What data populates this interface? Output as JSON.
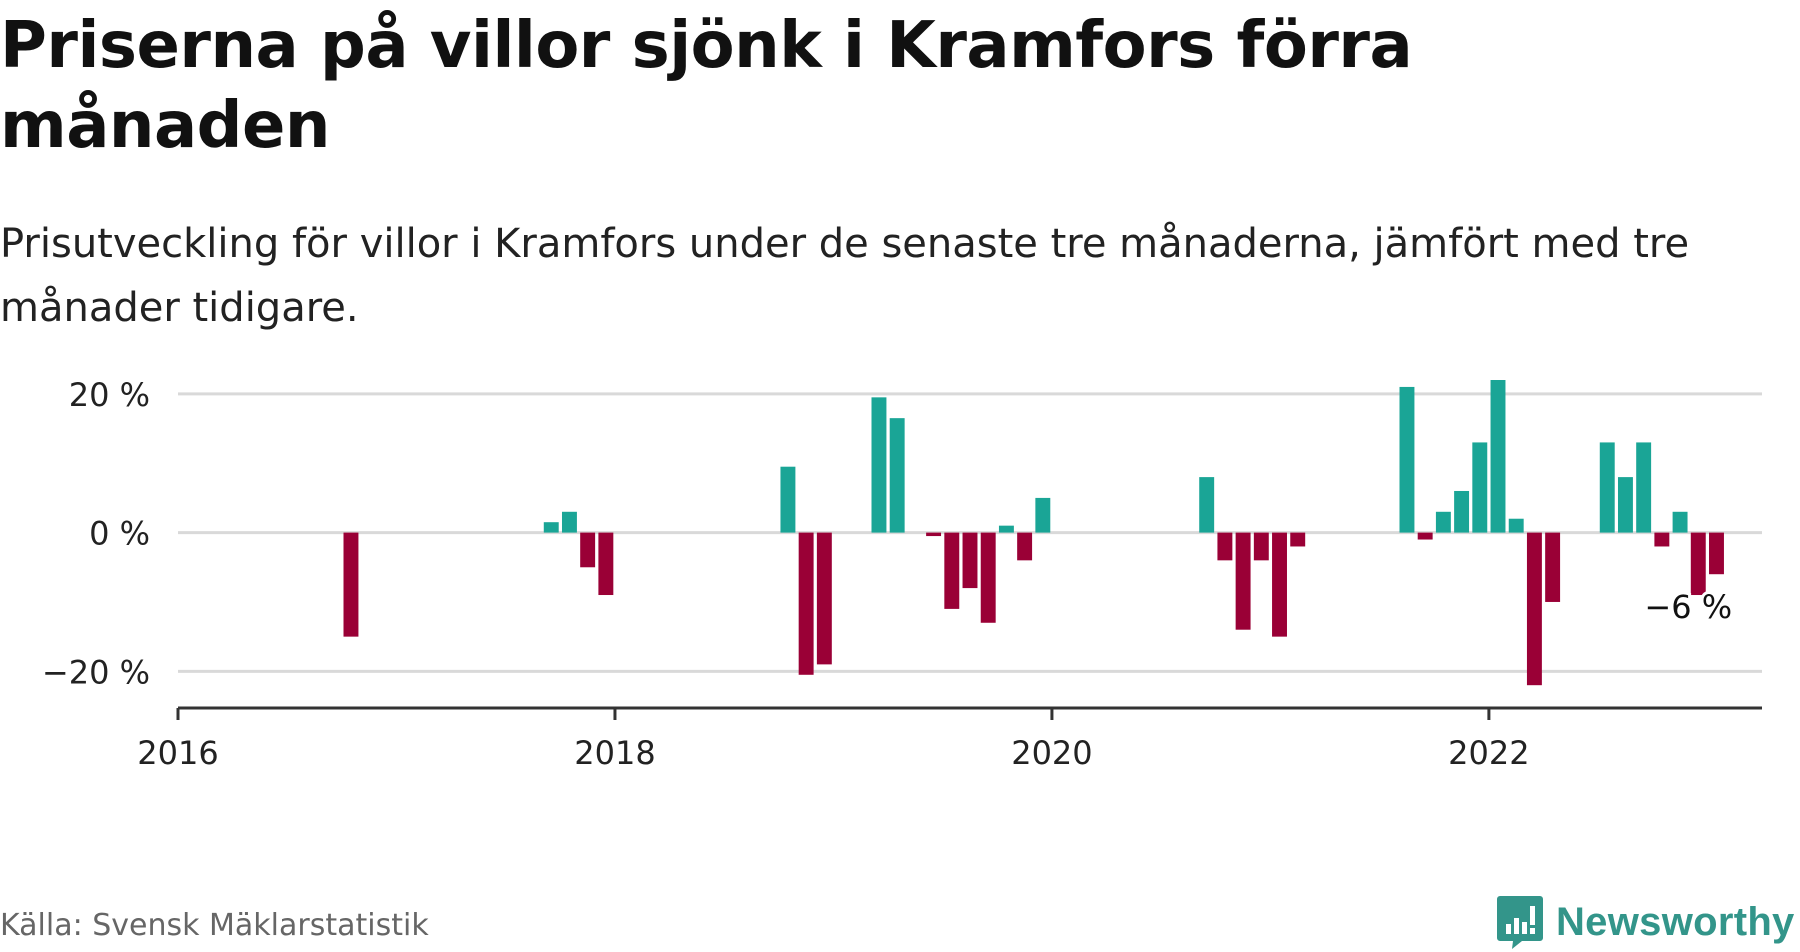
{
  "header": {
    "title": "Priserna på villor sjönk i Kramfors förra månaden",
    "subtitle": "Prisutveckling för villor i Kramfors under de senaste tre månaderna, jämfört med tre månader tidigare."
  },
  "footer": {
    "source": "Källa: Svensk Mäklarstatistik",
    "brand": "Newsworthy"
  },
  "colors": {
    "positive": "#1aa596",
    "negative": "#9a0036",
    "grid": "#d9d9d9",
    "axis": "#333333",
    "brand": "#33958a"
  },
  "chart_data": {
    "type": "bar",
    "x_unit": "month",
    "y_unit": "%",
    "xlim": [
      "2016-01",
      "2023-04"
    ],
    "ylim": [
      -25,
      22
    ],
    "y_ticks": [
      -20,
      0,
      20
    ],
    "y_tick_labels": [
      "−20 %",
      "0 %",
      "20 %"
    ],
    "x_ticks": [
      "2016-01",
      "2018-01",
      "2020-01",
      "2022-01"
    ],
    "x_tick_labels": [
      "2016",
      "2018",
      "2020",
      "2022"
    ],
    "grid": true,
    "annotation": {
      "x": "2022-12",
      "value": -6,
      "label": "−6 %"
    },
    "x": [
      "2016-10",
      "2017-09",
      "2017-10",
      "2017-11",
      "2017-12",
      "2018-10",
      "2018-11",
      "2018-12",
      "2019-03",
      "2019-04",
      "2019-06",
      "2019-07",
      "2019-08",
      "2019-09",
      "2019-10",
      "2019-11",
      "2019-12",
      "2020-09",
      "2020-10",
      "2020-11",
      "2020-12",
      "2021-01",
      "2021-02",
      "2021-08",
      "2021-09",
      "2021-10",
      "2021-11",
      "2021-12",
      "2022-01",
      "2022-02",
      "2022-03",
      "2022-04",
      "2022-07",
      "2022-08",
      "2022-09",
      "2022-10",
      "2022-11",
      "2022-12",
      "2023-01"
    ],
    "values": [
      -15,
      1.5,
      3,
      -5,
      -9,
      9.5,
      -20.5,
      -19,
      19.5,
      16.5,
      -0.5,
      -11,
      -8,
      -13,
      1,
      -4,
      5,
      8,
      -4,
      -14,
      -4,
      -15,
      -2,
      21,
      -1,
      3,
      6,
      13,
      22,
      2,
      -22,
      -10,
      13,
      8,
      13,
      -2,
      3,
      -9,
      -6
    ]
  }
}
